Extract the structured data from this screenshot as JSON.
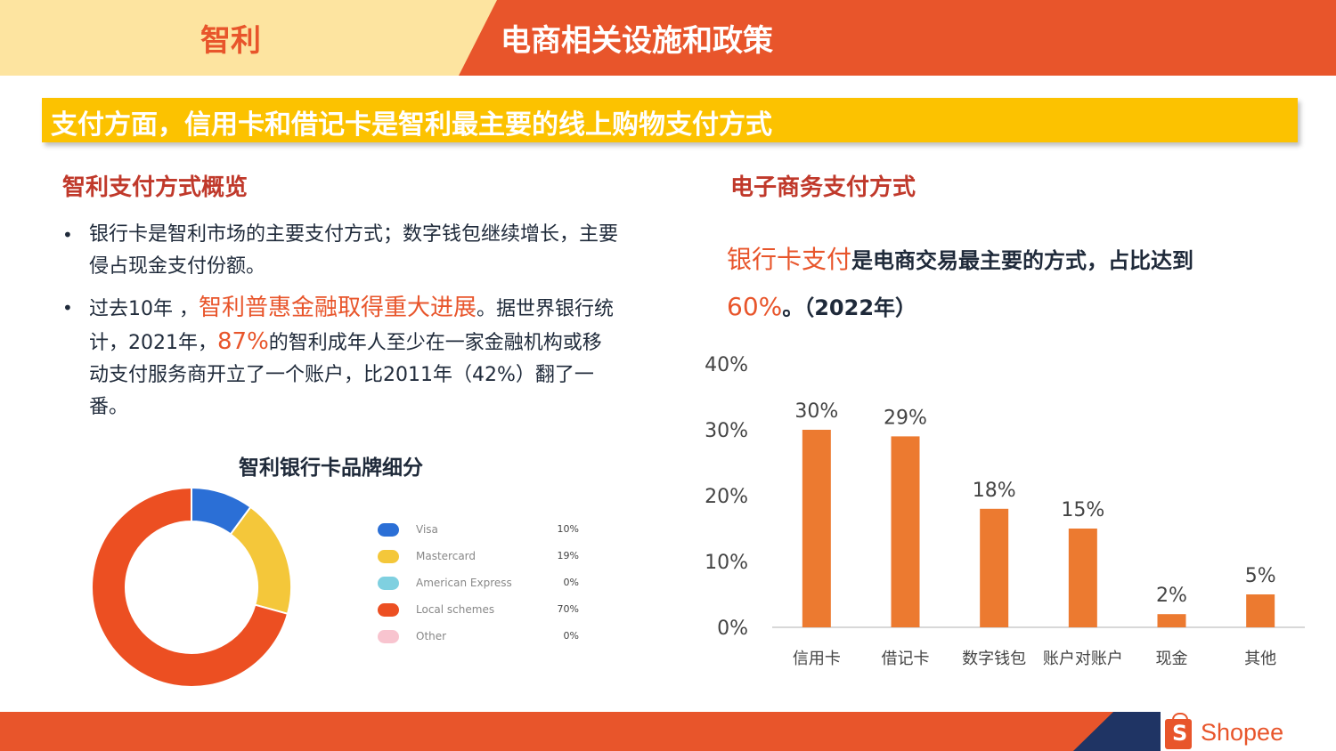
{
  "header": {
    "country": "智利",
    "title": "电商相关设施和政策"
  },
  "banner": "支付方面，信用卡和借记卡是智利最主要的线上购物支付方式",
  "left": {
    "section_title": "智利支付方式概览",
    "bullet1": "银行卡是智利市场的主要支付方式；数字钱包继续增长，主要侵占现金支付份额。",
    "bullet2_a": "过去10年 ，",
    "bullet2_hl1": "智利普惠金融取得重大进展",
    "bullet2_b": "。据世界银行统计，2021年，",
    "bullet2_hl2": "87%",
    "bullet2_c": "的智利成年人至少在一家金融机构或移动支付服务商开立了一个账户，比2011年（42%）翻了一番。",
    "pie_title": "智利银行卡品牌细分"
  },
  "right": {
    "section_title": "电子商务支付方式",
    "desc_hl1": "银行卡支付",
    "desc_a": "是电商交易最主要的方式，占比达到",
    "desc_hl2": "60%",
    "desc_b": "。（2022年）"
  },
  "chart_data": [
    {
      "type": "pie",
      "title": "智利银行卡品牌细分",
      "donut": true,
      "categories": [
        "Visa",
        "Mastercard",
        "American Express",
        "Local schemes",
        "Other"
      ],
      "values": [
        10,
        19,
        0,
        70,
        0
      ],
      "labels": [
        "10%",
        "19%",
        "0%",
        "70%",
        "0%"
      ],
      "colors": [
        "#2b6fd6",
        "#f4c73a",
        "#7fd0e0",
        "#ec4f22",
        "#f8c4cf"
      ],
      "legend": "right"
    },
    {
      "type": "bar",
      "title": "",
      "categories": [
        "信用卡",
        "借记卡",
        "数字钱包",
        "账户对账户",
        "现金",
        "其他"
      ],
      "values": [
        30,
        29,
        18,
        15,
        2,
        5
      ],
      "data_labels": [
        "30%",
        "29%",
        "18%",
        "15%",
        "2%",
        "5%"
      ],
      "ylim": [
        0,
        40
      ],
      "yticks": [
        "0%",
        "10%",
        "20%",
        "30%",
        "40%"
      ],
      "xlabel": "",
      "ylabel": "",
      "grid": false,
      "color": "#ec7a30"
    }
  ],
  "footer": {
    "logo_text": "Shopee",
    "logo_letter": "S"
  }
}
